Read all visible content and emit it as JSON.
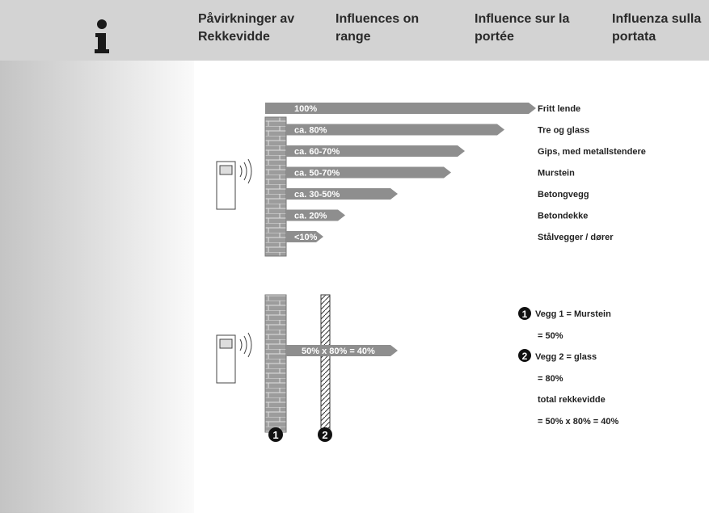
{
  "header": {
    "columns": [
      {
        "lines": [
          "Påvirkninger av",
          "Rekkevidde"
        ]
      },
      {
        "lines": [
          "Influences on",
          "range"
        ]
      },
      {
        "lines": [
          "Influence sur la",
          "portée"
        ]
      },
      {
        "lines": [
          "Influenza sulla",
          "portata"
        ]
      }
    ]
  },
  "diagram": {
    "rows": [
      {
        "arrow_label": "100%",
        "material": "Fritt lende"
      },
      {
        "arrow_label": "ca. 80%",
        "material": "Tre og glass"
      },
      {
        "arrow_label": "ca. 60-70%",
        "material": "Gips, med metallstendere"
      },
      {
        "arrow_label": "ca. 50-70%",
        "material": "Murstein"
      },
      {
        "arrow_label": "ca. 30-50%",
        "material": "Betongvegg"
      },
      {
        "arrow_label": "ca. 20%",
        "material": "Betondekke"
      },
      {
        "arrow_label": "<10%",
        "material": "Stålvegger / dører"
      }
    ]
  },
  "example": {
    "arrow_label": "50% x 80% = 40%",
    "legend": [
      "Vegg 1 = Murstein",
      "= 50%",
      "Vegg 2 = glass",
      "= 80%",
      "total rekkevidde",
      "= 50% x 80% = 40%"
    ]
  }
}
